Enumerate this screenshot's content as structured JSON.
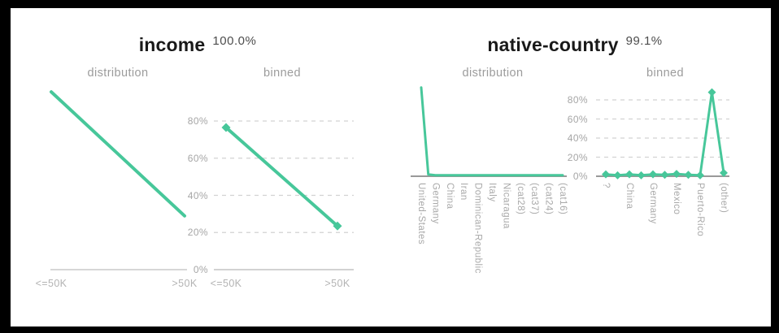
{
  "window": {
    "frame_color": "#000000",
    "background": "#ffffff"
  },
  "theme": {
    "accent": "#47c79a",
    "title_color": "#191919",
    "pct_color": "#4d4d4d",
    "subtitle_color": "#9c9c9c",
    "tick_color": "#b3b3b3",
    "grid_color": "#d2d2d2"
  },
  "panels": [
    {
      "title": "income",
      "match_pct": "100.0%"
    },
    {
      "title": "native-country",
      "match_pct": "99.1%"
    }
  ],
  "chart_data": [
    {
      "panel": "income",
      "variant": "distribution",
      "type": "line",
      "title": "distribution",
      "categories": [
        "<=50K",
        ">50K"
      ],
      "label_every": 1,
      "values": [
        76,
        23
      ],
      "ylim": [
        0,
        100
      ],
      "yticks": [],
      "grid": false,
      "markers": false,
      "x_label_rotation": 0
    },
    {
      "panel": "income",
      "variant": "binned",
      "type": "line",
      "title": "binned",
      "categories": [
        "<=50K",
        ">50K"
      ],
      "label_every": 1,
      "values": [
        76.5,
        23.5
      ],
      "ylim": [
        0,
        100
      ],
      "yticks": [
        80,
        60,
        40,
        20,
        0
      ],
      "grid": true,
      "markers": true,
      "x_label_rotation": 0
    },
    {
      "panel": "native-country",
      "variant": "distribution",
      "type": "line",
      "title": "distribution",
      "categories": [
        "United-States",
        "Germany",
        "China",
        "Iran",
        "Dominican-Republic",
        "Italy",
        "Nicaragua",
        "(cat28)",
        "(cat37)",
        "(cat24)",
        "(cat16)"
      ],
      "label_every": 2,
      "values": [
        95,
        2,
        1,
        1,
        1,
        1,
        1,
        1,
        1,
        1,
        1,
        1,
        1,
        1,
        1,
        1,
        1,
        1,
        1,
        1,
        1
      ],
      "ylim": [
        0,
        100
      ],
      "yticks": [],
      "grid": false,
      "markers": false,
      "x_label_rotation": 90
    },
    {
      "panel": "native-country",
      "variant": "binned",
      "type": "line",
      "title": "binned",
      "categories": [
        "?",
        "China",
        "Germany",
        "Mexico",
        "Puerto-Rico",
        "(other)"
      ],
      "label_every": 2,
      "values": [
        2,
        1,
        2,
        1,
        2,
        1.5,
        2.5,
        1.5,
        1,
        88,
        3.5
      ],
      "ylim": [
        0,
        100
      ],
      "yticks": [
        80,
        60,
        40,
        20,
        0
      ],
      "grid": true,
      "markers": true,
      "x_label_rotation": 90
    }
  ]
}
